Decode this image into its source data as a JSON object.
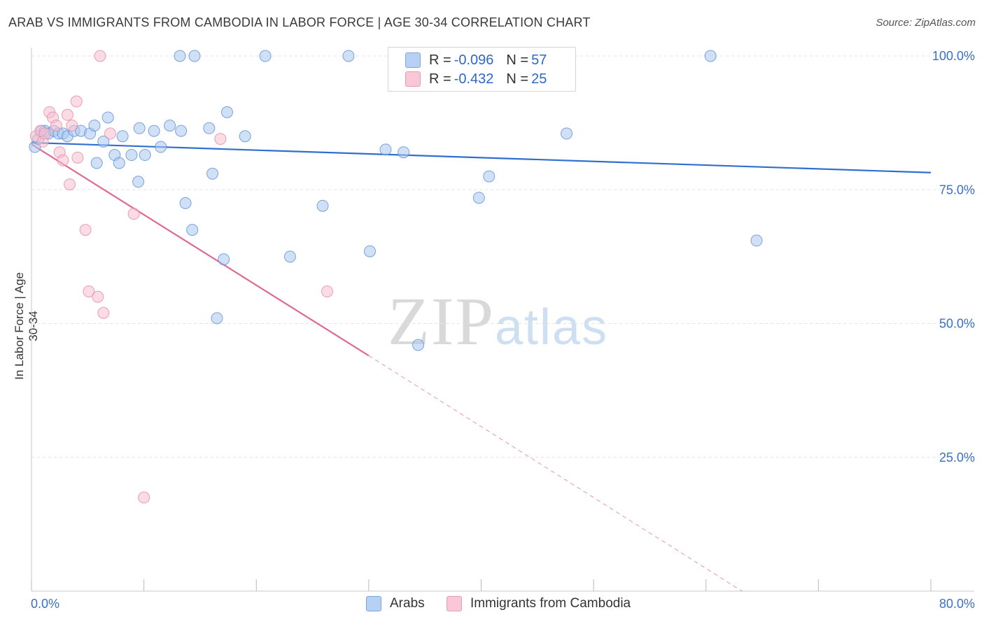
{
  "title": "ARAB VS IMMIGRANTS FROM CAMBODIA IN LABOR FORCE | AGE 30-34 CORRELATION CHART",
  "source": "Source: ZipAtlas.com",
  "watermark": {
    "zip": "ZIP",
    "atlas": "atlas"
  },
  "legend": {
    "rows": [
      {
        "r_label": "R =",
        "r_value": "-0.096",
        "n_label": "N =",
        "n_value": "57"
      },
      {
        "r_label": "R =",
        "r_value": "-0.432",
        "n_label": "N =",
        "n_value": "25"
      }
    ]
  },
  "bottom_legend": [
    "Arabs",
    "Immigrants from Cambodia"
  ],
  "colors": {
    "arabs_fill": "#a9c9f0",
    "arabs_stroke": "#5b8fd6",
    "arabs_line": "#2f6fcf",
    "cambodia_fill": "#f7bfd0",
    "cambodia_stroke": "#e48aa8",
    "cambodia_line": "#e06a96",
    "tick_text": "#3b6fc4",
    "grid": "#e3e3e3"
  },
  "chart_data": {
    "type": "scatter",
    "title": "ARAB VS IMMIGRANTS FROM CAMBODIA IN LABOR FORCE | AGE 30-34 CORRELATION CHART",
    "xlabel": "",
    "ylabel": "In Labor Force | Age 30-34",
    "xlim": [
      0,
      80
    ],
    "ylim": [
      0,
      104
    ],
    "x_tick_labels": [
      "0.0%",
      "80.0%"
    ],
    "y_ticks": [
      25,
      50,
      75,
      100
    ],
    "y_tick_labels": [
      "25.0%",
      "50.0%",
      "75.0%",
      "100.0%"
    ],
    "grid": true,
    "legend_position": "top-center",
    "series": [
      {
        "name": "Arabs",
        "points": [
          [
            0.3,
            83.0
          ],
          [
            0.6,
            84.5
          ],
          [
            0.9,
            86.0
          ],
          [
            1.2,
            86.0
          ],
          [
            1.5,
            85.5
          ],
          [
            2.0,
            86.0
          ],
          [
            2.4,
            85.5
          ],
          [
            2.8,
            85.5
          ],
          [
            3.2,
            85.0
          ],
          [
            3.8,
            86.0
          ],
          [
            4.4,
            86.0
          ],
          [
            5.2,
            85.5
          ],
          [
            5.6,
            87.0
          ],
          [
            6.4,
            84.0
          ],
          [
            6.8,
            88.5
          ],
          [
            7.4,
            81.5
          ],
          [
            8.1,
            85.0
          ],
          [
            8.9,
            81.5
          ],
          [
            9.6,
            86.5
          ],
          [
            10.1,
            81.5
          ],
          [
            10.9,
            86.0
          ],
          [
            11.5,
            83.0
          ],
          [
            12.3,
            87.0
          ],
          [
            13.3,
            86.0
          ],
          [
            15.8,
            86.5
          ],
          [
            17.4,
            89.5
          ],
          [
            19.0,
            85.0
          ],
          [
            5.8,
            80.0
          ],
          [
            7.8,
            80.0
          ],
          [
            9.5,
            76.5
          ],
          [
            13.7,
            72.5
          ],
          [
            14.3,
            67.5
          ],
          [
            16.1,
            78.0
          ],
          [
            17.1,
            62.0
          ],
          [
            16.5,
            51.0
          ],
          [
            23.0,
            62.5
          ],
          [
            25.9,
            72.0
          ],
          [
            30.1,
            63.5
          ],
          [
            31.5,
            82.5
          ],
          [
            33.1,
            82.0
          ],
          [
            34.4,
            46.0
          ],
          [
            39.8,
            73.5
          ],
          [
            40.7,
            77.5
          ],
          [
            47.6,
            85.5
          ],
          [
            64.5,
            65.5
          ],
          [
            13.2,
            100.0
          ],
          [
            14.5,
            100.0
          ],
          [
            20.8,
            100.0
          ],
          [
            28.2,
            100.0
          ],
          [
            41.9,
            100.0
          ],
          [
            60.4,
            100.0
          ]
        ]
      },
      {
        "name": "Immigrants from Cambodia",
        "points": [
          [
            0.4,
            85.0
          ],
          [
            0.8,
            86.0
          ],
          [
            1.0,
            84.0
          ],
          [
            1.2,
            85.5
          ],
          [
            1.6,
            89.5
          ],
          [
            1.9,
            88.5
          ],
          [
            2.2,
            87.0
          ],
          [
            2.5,
            82.0
          ],
          [
            2.8,
            80.5
          ],
          [
            3.2,
            89.0
          ],
          [
            3.4,
            76.0
          ],
          [
            3.6,
            87.0
          ],
          [
            4.0,
            91.5
          ],
          [
            4.1,
            81.0
          ],
          [
            4.8,
            67.5
          ],
          [
            5.1,
            56.0
          ],
          [
            5.9,
            55.0
          ],
          [
            6.4,
            52.0
          ],
          [
            7.0,
            85.5
          ],
          [
            9.1,
            70.5
          ],
          [
            10.0,
            17.5
          ],
          [
            16.8,
            84.5
          ],
          [
            26.3,
            56.0
          ],
          [
            6.1,
            100.0
          ]
        ]
      }
    ],
    "trend_lines": [
      {
        "name": "Arabs",
        "x": [
          0,
          80
        ],
        "y": [
          83.8,
          78.2
        ],
        "style": "solid"
      },
      {
        "name": "Immigrants from Cambodia",
        "x": [
          0,
          30
        ],
        "y": [
          83.5,
          44.0
        ],
        "style": "solid"
      },
      {
        "name": "Immigrants from Cambodia",
        "x": [
          30,
          63.2
        ],
        "y": [
          44.0,
          0
        ],
        "style": "dashed"
      }
    ]
  }
}
